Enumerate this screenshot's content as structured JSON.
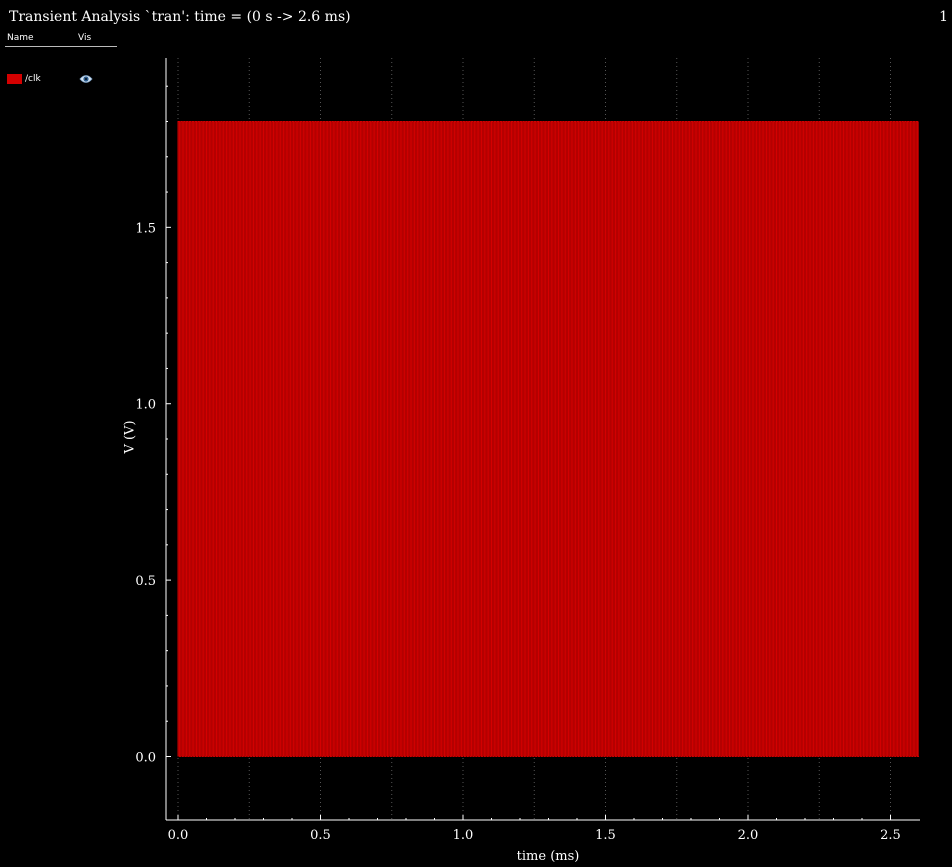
{
  "window": {
    "title": "Transient Analysis `tran': time = (0 s -> 2.6 ms)",
    "page_number": "1"
  },
  "sidebar": {
    "headers": {
      "name": "Name",
      "vis": "Vis"
    },
    "signals": [
      {
        "name": "/clk",
        "color": "#d40000",
        "visible": true,
        "icon": "eye-icon"
      }
    ]
  },
  "colors": {
    "background": "#000000",
    "trace": "#d40000",
    "grid": "#555555",
    "axis": "#ffffff"
  },
  "chart_data": {
    "type": "line",
    "xlabel": "time (ms)",
    "ylabel": "V (V)",
    "xlim": [
      0,
      2.6
    ],
    "ylim": [
      -0.18,
      1.98
    ],
    "xticks": [
      0.0,
      0.5,
      1.0,
      1.5,
      2.0,
      2.5
    ],
    "xtick_labels": [
      "0.0",
      "0.5",
      "1.0",
      "1.5",
      "2.0",
      "2.5"
    ],
    "yticks": [
      0.0,
      0.5,
      1.0,
      1.5
    ],
    "ytick_labels": [
      "0.0",
      "0.5",
      "1.0",
      "1.5"
    ],
    "x_gridlines": [
      0.0,
      0.25,
      0.5,
      0.75,
      1.0,
      1.25,
      1.5,
      1.75,
      2.0,
      2.25,
      2.5
    ],
    "grid": true,
    "series": [
      {
        "name": "/clk",
        "color": "#d40000",
        "kind": "square-wave",
        "low": 0.0,
        "high": 1.8,
        "x_start": 0.0,
        "x_end": 2.6,
        "period_ms": 0.01,
        "duty": 0.5
      }
    ]
  }
}
